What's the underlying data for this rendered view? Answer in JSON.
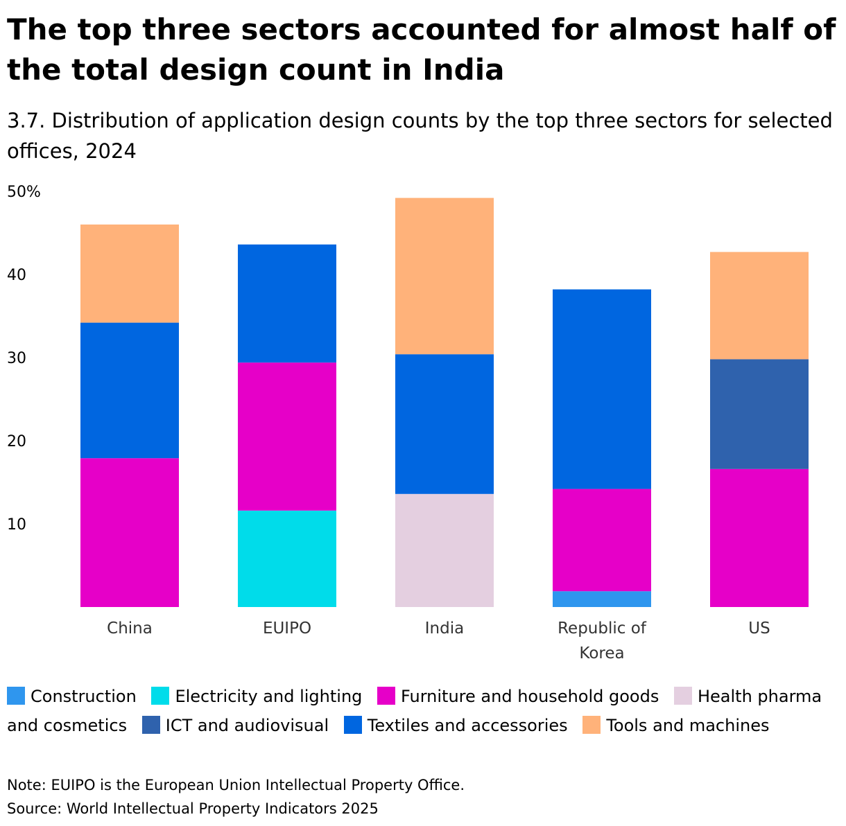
{
  "title": "The top three sectors accounted for almost half of the total design count in India",
  "subtitle": "3.7. Distribution of application design counts by the top three sectors for selected offices, 2024",
  "note": "Note: EUIPO is the European Union Intellectual Property Office.",
  "source": "Source: World Intellectual Property Indicators 2025",
  "chart_data": {
    "type": "bar",
    "stacked": true,
    "categories": [
      "China",
      "EUIPO",
      "India",
      "Republic of Korea",
      "US"
    ],
    "category_lines": [
      [
        "China"
      ],
      [
        "EUIPO"
      ],
      [
        "India"
      ],
      [
        "Republic of",
        "Korea"
      ],
      [
        "US"
      ]
    ],
    "yticks": [
      10,
      20,
      30,
      40,
      50
    ],
    "ytick_labels": [
      "10",
      "20",
      "30",
      "40",
      "50%"
    ],
    "ylim": [
      0,
      50
    ],
    "grid": false,
    "legend_position": "bottom",
    "series": [
      {
        "name": "Construction",
        "color": "#2f96ee",
        "values": [
          0,
          0,
          0,
          1.9,
          0
        ]
      },
      {
        "name": "Electricity and lighting",
        "color": "#00dcea",
        "values": [
          0,
          11.6,
          0,
          0,
          0
        ]
      },
      {
        "name": "Furniture and household goods",
        "color": "#e600c8",
        "values": [
          17.9,
          17.8,
          0,
          12.3,
          16.6
        ]
      },
      {
        "name": "Health pharma and cosmetics",
        "color": "#e4cfe0",
        "values": [
          0,
          0,
          13.6,
          0,
          0
        ]
      },
      {
        "name": "ICT and audiovisual",
        "color": "#2f62ad",
        "values": [
          0,
          0,
          0,
          0,
          13.2
        ]
      },
      {
        "name": "Textiles and accessories",
        "color": "#0066e0",
        "values": [
          16.3,
          14.2,
          16.8,
          24.0,
          0
        ]
      },
      {
        "name": "Tools and machines",
        "color": "#ffb27a",
        "values": [
          11.8,
          0,
          18.8,
          0,
          12.9
        ]
      }
    ]
  }
}
